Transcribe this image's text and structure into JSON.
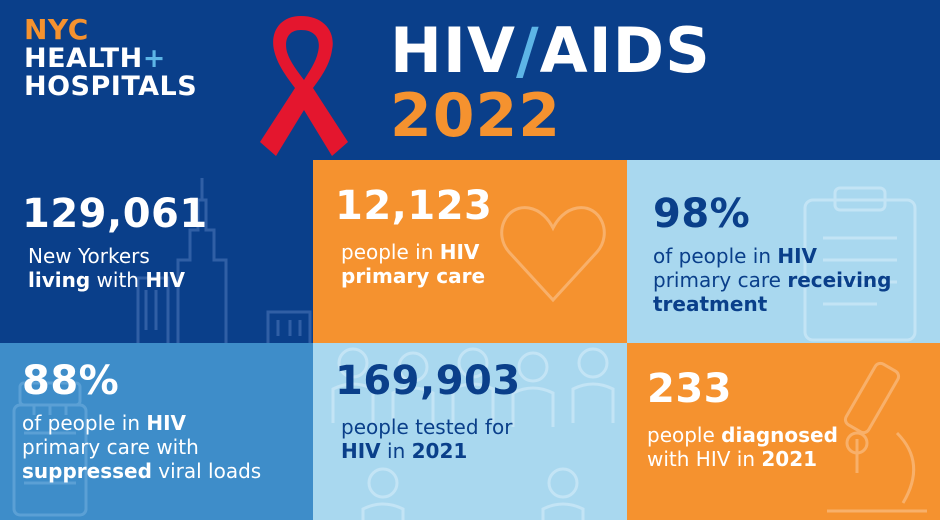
{
  "logo": {
    "line1": "NYC",
    "line2": "HEALTH",
    "plus": "+",
    "line3": "HOSPITALS"
  },
  "title": {
    "part1": "HIV",
    "slash": "/",
    "part2": "AIDS",
    "year": "2022"
  },
  "stats": [
    {
      "number": "129,061",
      "text": [
        "New Yorkers",
        "living",
        " with ",
        "HIV"
      ]
    },
    {
      "number": "12,123",
      "text": [
        "people in ",
        "HIV",
        "primary care"
      ]
    },
    {
      "number": "98%",
      "text": [
        "of people in ",
        "HIV",
        "primary care ",
        "receiving",
        "treatment"
      ]
    },
    {
      "number": "88%",
      "text": [
        "of people in ",
        "HIV",
        "primary care with",
        "suppressed",
        " viral loads"
      ]
    },
    {
      "number": "169,903",
      "text": [
        "people tested for",
        "HIV",
        " in ",
        "2021"
      ]
    },
    {
      "number": "233",
      "text": [
        "people ",
        "diagnosed",
        "with HIV in ",
        "2021"
      ]
    }
  ],
  "icons": [
    "red-ribbon-icon",
    "city-skyline-icon",
    "heart-icon",
    "clipboard-icon",
    "pill-bottle-icon",
    "people-icon",
    "microscope-icon"
  ],
  "colors": {
    "navy": "#0a3f8a",
    "orange": "#f5922f",
    "light_blue": "#a9d8ef",
    "mid_blue": "#3e8dc9",
    "red": "#e4162e"
  }
}
